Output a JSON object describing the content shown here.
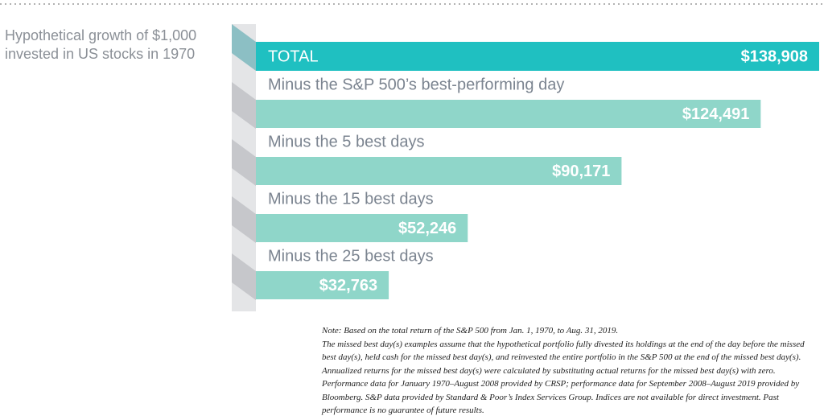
{
  "chart_data": {
    "type": "bar",
    "title": "Hypothetical growth of $1,000 invested in US stocks in 1970",
    "categories": [
      "TOTAL",
      "Minus the S&P 500’s best-performing day",
      "Minus the 5 best days",
      "Minus the 15 best days",
      "Minus the 25 best days"
    ],
    "values": [
      138908,
      124491,
      90171,
      52246,
      32763
    ],
    "value_labels": [
      "$138,908",
      "$124,491",
      "$90,171",
      "$52,246",
      "$32,763"
    ],
    "colors": [
      "#1fc0c1",
      "#8fd6c9",
      "#8fd6c9",
      "#8fd6c9",
      "#8fd6c9"
    ]
  },
  "note": [
    "Note: Based on the total return of the S&P 500 from Jan. 1, 1970, to Aug. 31, 2019.",
    "The missed best day(s) examples assume that the hypothetical portfolio fully divested its holdings at the end of the day before the missed best day(s), held cash for the missed best day(s), and reinvested the entire portfolio in the S&P 500 at the end of the missed best day(s).  Annualized returns for the missed best day(s) were calculated by substituting actual returns for the missed best day(s) with zero.  Performance data for January 1970–August 2008 provided by CRSP; performance data for September 2008–August 2019 provided by Bloomberg.  S&P data provided by Standard & Poor’s Index Services Group.  Indices are not available for direct investment. Past performance is no guarantee of future results."
  ]
}
